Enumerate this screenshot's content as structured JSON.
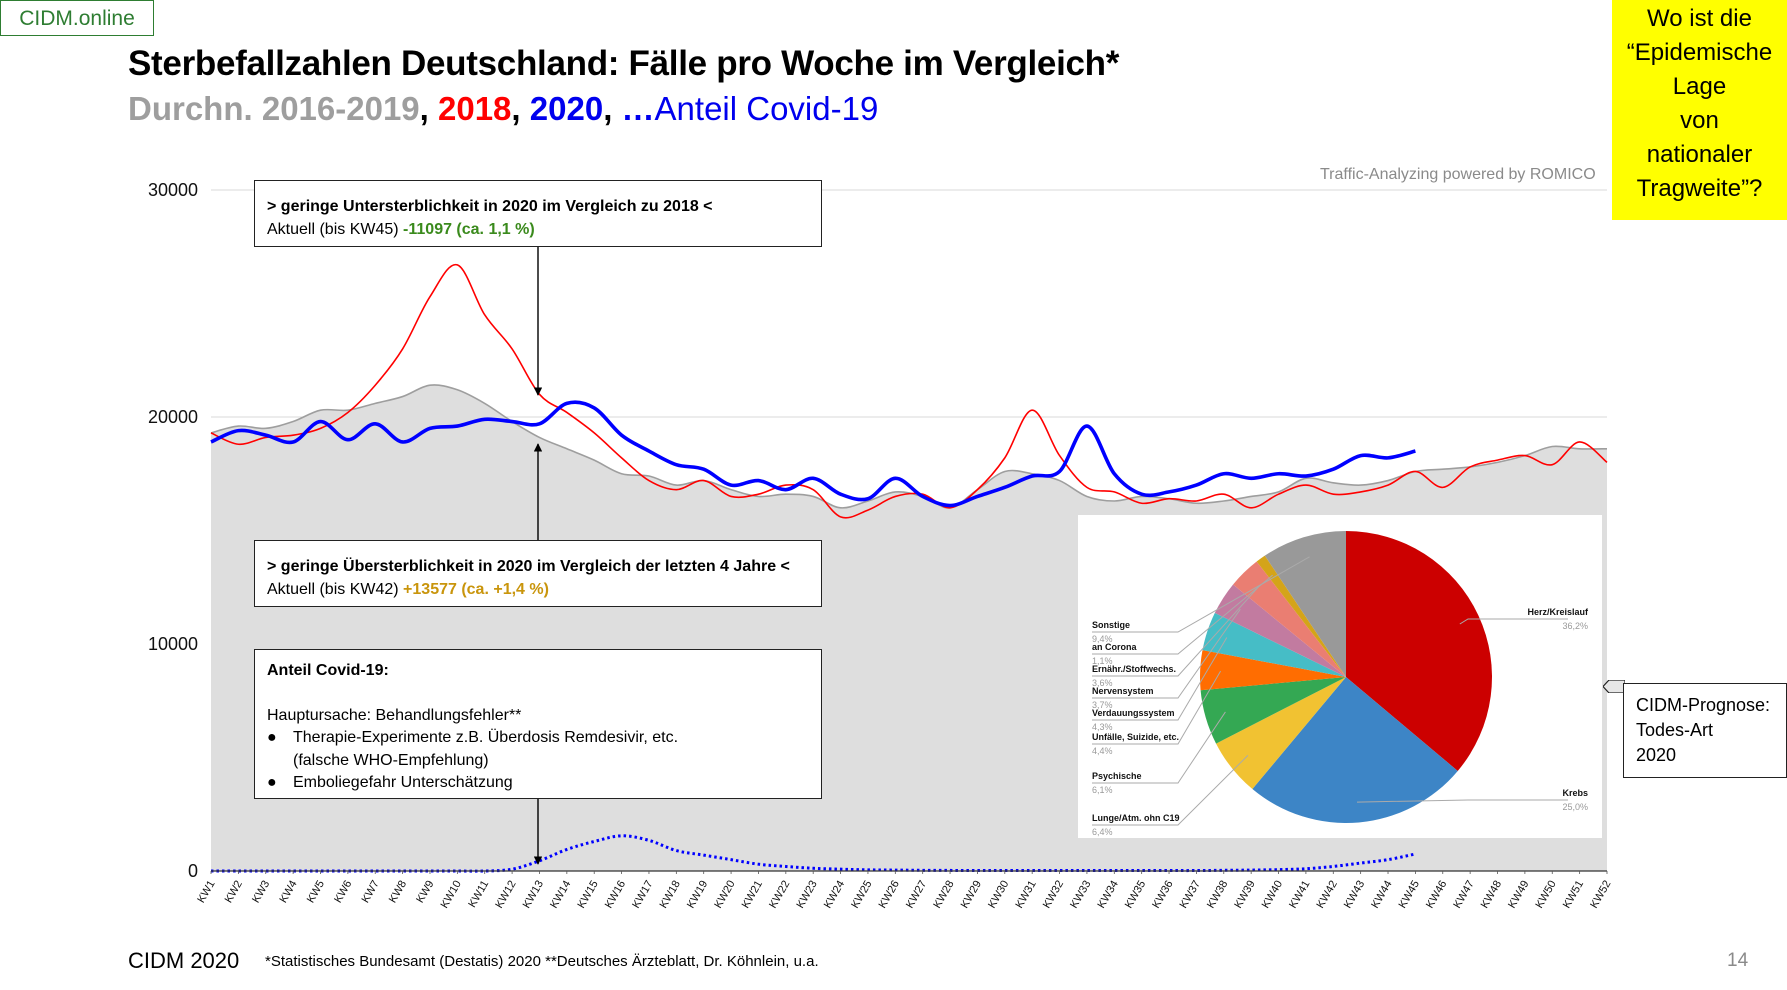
{
  "brand": "CIDM.online",
  "title": "Sterbefallzahlen Deutschland: Fälle pro Woche im Vergleich*",
  "subtitle": {
    "avg": "Durchn. 2016-2019",
    "sep1": ", ",
    "y2018": "2018",
    "sep2": ", ",
    "y2020": "2020",
    "sep3": ", ",
    "dots": "…",
    "covid": "Anteil Covid-19"
  },
  "question_box": "Wo ist die\n“Epidemische\nLage\nvon\nnationaler\nTragweite”?",
  "watermark": "Traffic-Analyzing powered by ROMICO",
  "annotations": {
    "box1": {
      "heading": "> geringe Untersterblichkeit in 2020 im Vergleich zu 2018 <",
      "prefix": "Aktuell (bis KW45) ",
      "value": "-11097 (ca. 1,1 %)"
    },
    "box2": {
      "heading": "> geringe Übersterblichkeit in 2020 im Vergleich der letzten 4 Jahre <",
      "prefix": "Aktuell (bis KW42) ",
      "value": "+13577 (ca. +1,4 %)"
    },
    "box3": {
      "heading": "Anteil Covid-19:",
      "line1": "Hauptursache: Behandlungsfehler**",
      "bullet1": "Therapie-Experimente z.B. Überdosis Remdesivir, etc.",
      "bullet1b": "(falsche WHO-Empfehlung)",
      "bullet2": "Emboliegefahr Unterschätzung",
      "bullet_glyph": "●"
    }
  },
  "prognose_box": "CIDM-Prognose:\nTodes-Art\n2020",
  "footer": {
    "left": "CIDM 2020",
    "sources": "*Statistisches Bundesamt (Destatis) 2020    **Deutsches Ärzteblatt, Dr. Köhnlein, u.a.",
    "page": "14"
  },
  "colors": {
    "avg": "#9e9e9e",
    "avg_fill": "#dedede",
    "y2018": "#ff0000",
    "y2020": "#0000ff",
    "covid": "#0000ff",
    "brand": "#2e7d32",
    "highlight": "#ffff00"
  },
  "chart_data": [
    {
      "type": "line",
      "title": "Sterbefallzahlen Deutschland: Fälle pro Woche im Vergleich*",
      "xlabel": "",
      "ylabel": "",
      "ylim": [
        0,
        30000
      ],
      "yticks": [
        0,
        10000,
        20000,
        30000
      ],
      "grid": true,
      "categories": [
        "KW1",
        "KW2",
        "KW3",
        "KW4",
        "KW5",
        "KW6",
        "KW7",
        "KW8",
        "KW9",
        "KW10",
        "KW11",
        "KW12",
        "KW13",
        "KW14",
        "KW15",
        "KW16",
        "KW17",
        "KW18",
        "KW19",
        "KW20",
        "KW21",
        "KW22",
        "KW23",
        "KW24",
        "KW25",
        "KW26",
        "KW27",
        "KW28",
        "KW29",
        "KW30",
        "KW31",
        "KW32",
        "KW33",
        "KW34",
        "KW35",
        "KW36",
        "KW37",
        "KW38",
        "KW39",
        "KW40",
        "KW41",
        "KW42",
        "KW43",
        "KW44",
        "KW45",
        "KW46",
        "KW47",
        "KW48",
        "KW49",
        "KW50",
        "KW51",
        "KW52"
      ],
      "series": [
        {
          "name": "Durchn. 2016-2019",
          "style": "area",
          "values": [
            19300,
            19600,
            19500,
            19800,
            20300,
            20300,
            20600,
            20900,
            21400,
            21200,
            20600,
            19800,
            19100,
            18600,
            18100,
            17500,
            17400,
            17000,
            17200,
            16800,
            16500,
            16600,
            16500,
            16000,
            16300,
            16700,
            16500,
            16000,
            16800,
            17600,
            17500,
            17200,
            16500,
            16300,
            16500,
            16400,
            16200,
            16300,
            16500,
            16700,
            17300,
            17100,
            17000,
            17200,
            17600,
            17700,
            17800,
            18000,
            18300,
            18700,
            18600,
            18600
          ]
        },
        {
          "name": "2018",
          "style": "line",
          "values": [
            19300,
            18800,
            19100,
            19200,
            19500,
            20200,
            21400,
            23000,
            25300,
            26700,
            24500,
            23000,
            21000,
            20200,
            19300,
            18200,
            17200,
            16800,
            17200,
            16500,
            16600,
            17000,
            16800,
            15600,
            15900,
            16500,
            16600,
            16000,
            16800,
            18200,
            20300,
            18300,
            16900,
            16700,
            16200,
            16400,
            16300,
            16600,
            16000,
            16600,
            17000,
            16600,
            16700,
            17000,
            17600,
            16900,
            17800,
            18100,
            18300,
            17900,
            18900,
            18000
          ]
        },
        {
          "name": "2020",
          "style": "thick-line",
          "values": [
            18900,
            19400,
            19200,
            18900,
            19800,
            19000,
            19700,
            18900,
            19500,
            19600,
            19900,
            19800,
            19700,
            20600,
            20400,
            19200,
            18500,
            17900,
            17700,
            17000,
            17200,
            16800,
            17300,
            16600,
            16400,
            17300,
            16500,
            16100,
            16500,
            16900,
            17400,
            17600,
            19600,
            17500,
            16600,
            16700,
            17000,
            17500,
            17300,
            17500,
            17400,
            17700,
            18300,
            18200,
            18500
          ]
        },
        {
          "name": "Anteil Covid-19",
          "style": "dotted",
          "values": [
            0,
            0,
            0,
            0,
            0,
            0,
            0,
            0,
            0,
            0,
            0,
            80,
            450,
            950,
            1300,
            1550,
            1350,
            900,
            700,
            500,
            300,
            200,
            120,
            80,
            50,
            40,
            30,
            25,
            20,
            20,
            20,
            20,
            20,
            20,
            20,
            20,
            20,
            30,
            40,
            60,
            100,
            200,
            350,
            500,
            750
          ]
        }
      ]
    },
    {
      "type": "pie",
      "title": "CIDM-Prognose: Todes-Art 2020",
      "slices": [
        {
          "label": "Herz/Kreislauf",
          "value": 36.2,
          "display": "36,2%",
          "color": "#cc0000"
        },
        {
          "label": "Krebs",
          "value": 25.0,
          "display": "25,0%",
          "color": "#3d85c6"
        },
        {
          "label": "Lunge/Atm. ohn C19",
          "value": 6.4,
          "display": "6,4%",
          "color": "#f1c232"
        },
        {
          "label": "Psychische",
          "value": 6.1,
          "display": "6,1%",
          "color": "#34a853"
        },
        {
          "label": "Unfälle, Suizide, etc.",
          "value": 4.4,
          "display": "4,4%",
          "color": "#ff6d01"
        },
        {
          "label": "Verdauungssystem",
          "value": 4.3,
          "display": "4,3%",
          "color": "#46bdc6"
        },
        {
          "label": "Nervensystem",
          "value": 3.7,
          "display": "3,7%",
          "color": "#c27ba0"
        },
        {
          "label": "Ernähr./Stoffwechs.",
          "value": 3.6,
          "display": "3,6%",
          "color": "#ea7e72"
        },
        {
          "label": "an Corona",
          "value": 1.1,
          "display": "1,1%",
          "color": "#d4a419"
        },
        {
          "label": "Sonstige",
          "value": 9.4,
          "display": "9,4%",
          "color": "#999999"
        }
      ]
    }
  ]
}
